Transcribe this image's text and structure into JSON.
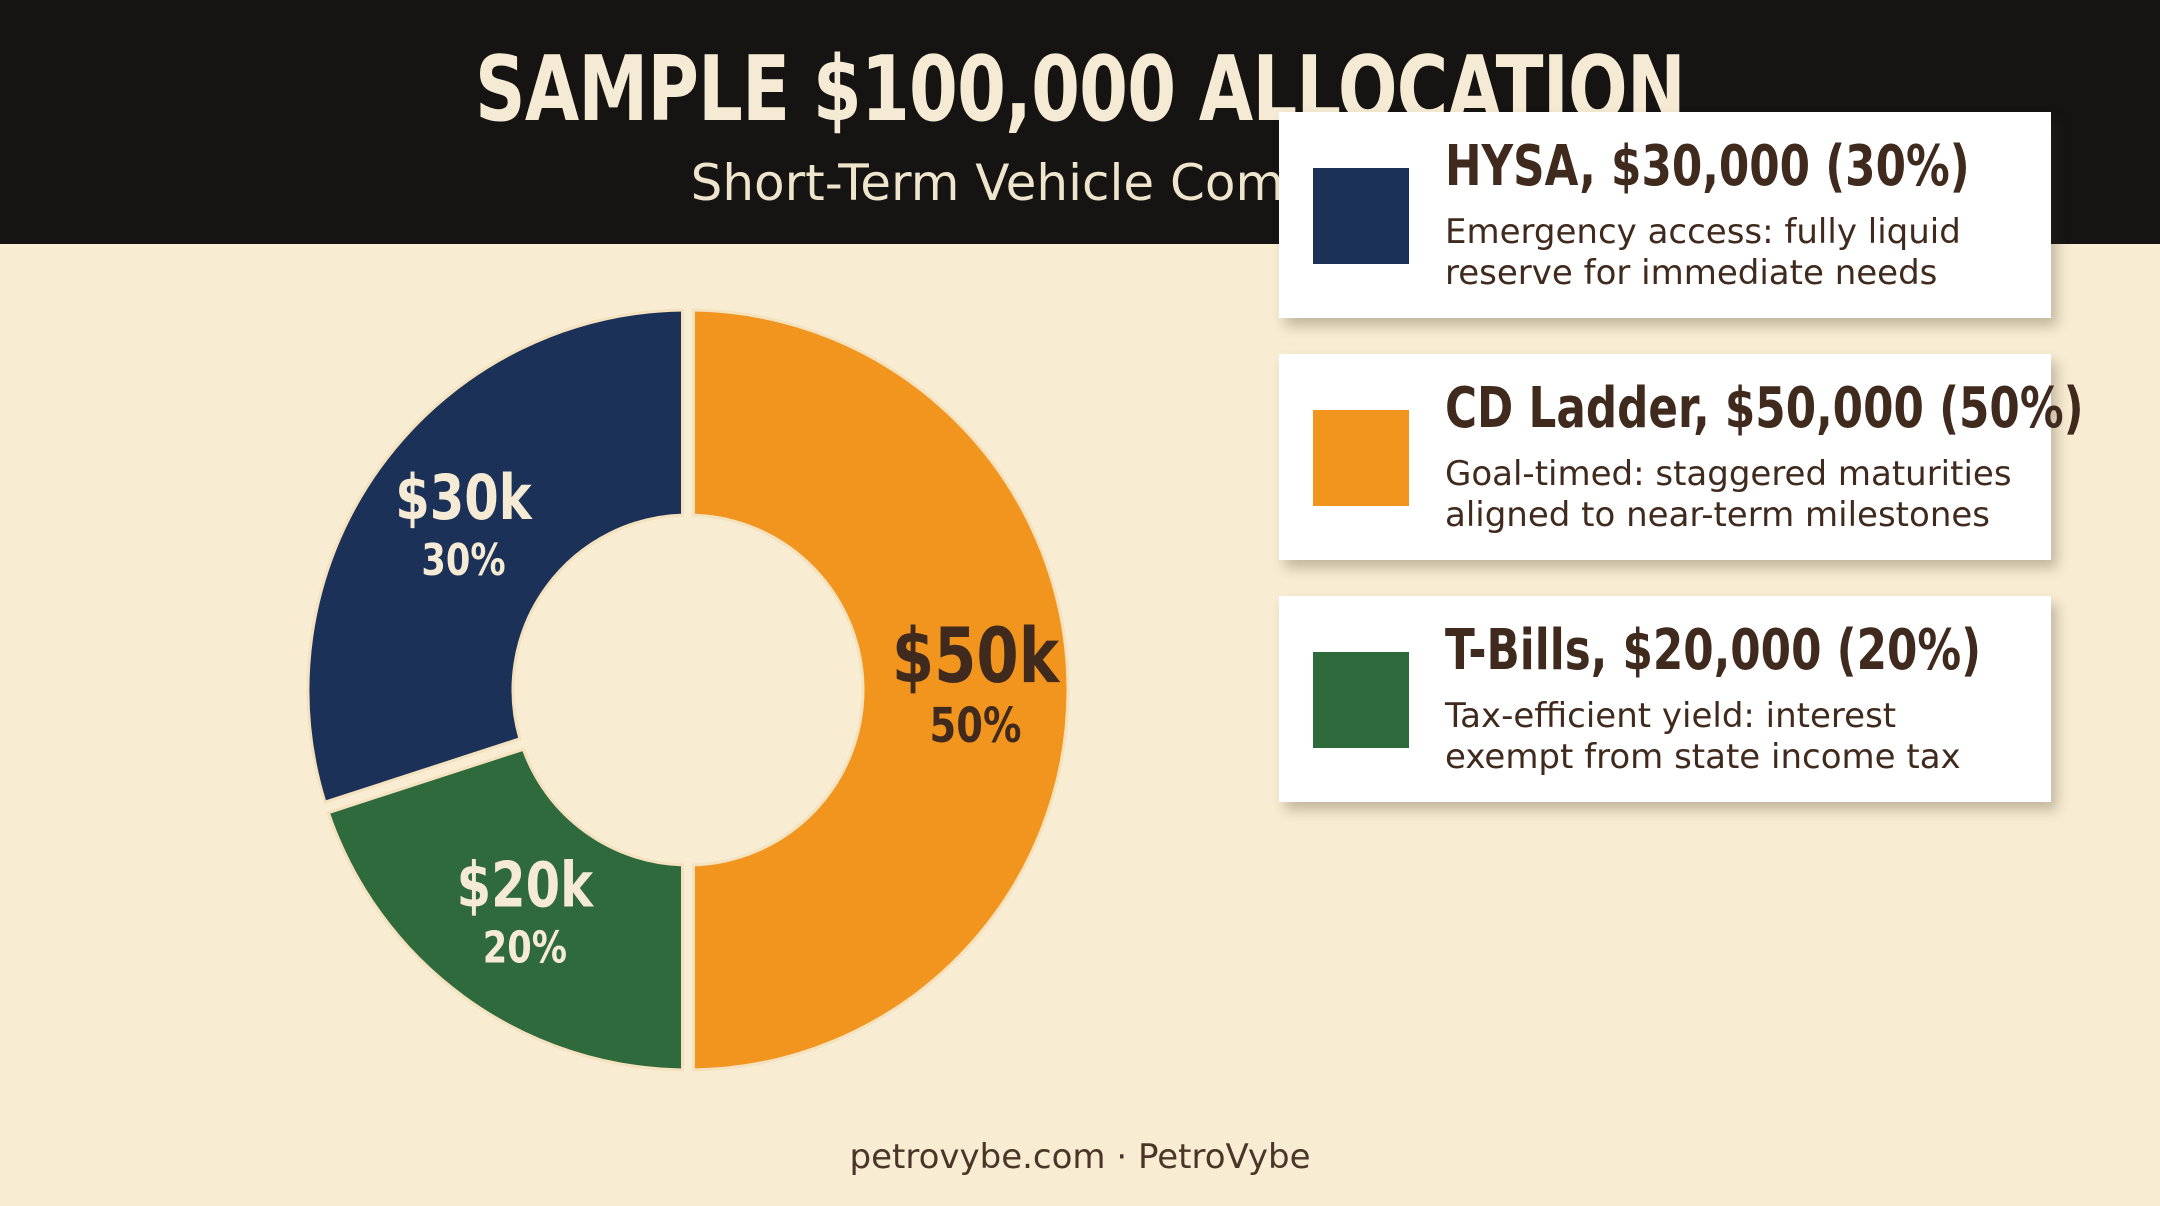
{
  "header": {
    "title": "SAMPLE $100,000 ALLOCATION",
    "subtitle": "Short-Term Vehicle Comparison"
  },
  "chart_data": {
    "type": "pie",
    "variant": "donut",
    "total": 100000,
    "categories": [
      "HYSA",
      "CD Ladder",
      "T-Bills"
    ],
    "values": [
      30000,
      50000,
      20000
    ],
    "slice_labels": [
      {
        "value": "$30k",
        "percent": "30%"
      },
      {
        "value": "$50k",
        "percent": "50%"
      },
      {
        "value": "$20k",
        "percent": "20%"
      }
    ],
    "colors": [
      "#1b3157",
      "#f2951f",
      "#2f6a3c"
    ]
  },
  "legend": {
    "items": [
      {
        "title": "HYSA, $30,000 (30%)",
        "description": "Emergency access: fully liquid reserve for immediate needs",
        "color": "#1b3157"
      },
      {
        "title": "CD Ladder, $50,000 (50%)",
        "description": "Goal-timed: staggered maturities aligned to near-term milestones",
        "color": "#f2951f"
      },
      {
        "title": "T-Bills, $20,000 (20%)",
        "description": "Tax-efficient yield: interest exempt from state income tax",
        "color": "#2f6a3c"
      }
    ]
  },
  "footer": {
    "text": "petrovybe.com · PetroVybe"
  },
  "colors": {
    "header_bg": "#151412",
    "background": "#f8ecd2",
    "text_dark": "#3f2a1d"
  }
}
